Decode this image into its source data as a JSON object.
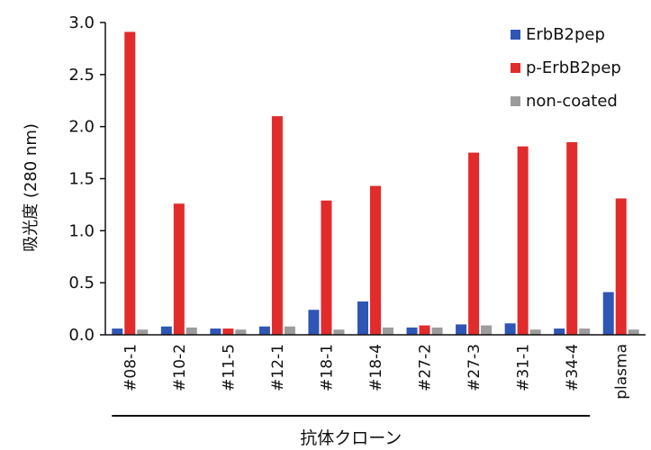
{
  "chart_data": {
    "type": "bar",
    "title": "",
    "xlabel": "",
    "ylabel": "吸光度 (280 nm)",
    "group_label": "抗体クローン",
    "ylim": [
      0,
      3.0
    ],
    "yticks": [
      "0.0",
      "0.5",
      "1.0",
      "1.5",
      "2.0",
      "2.5",
      "3.0"
    ],
    "grid": false,
    "legend_position": "top-right",
    "categories": [
      "#08-1",
      "#10-2",
      "#11-5",
      "#12-1",
      "#18-1",
      "#18-4",
      "#27-2",
      "#27-3",
      "#31-1",
      "#34-4",
      "plasma"
    ],
    "series": [
      {
        "name": "ErbB2pep",
        "color": "#2f55b5",
        "values": [
          0.06,
          0.08,
          0.06,
          0.08,
          0.24,
          0.32,
          0.07,
          0.1,
          0.11,
          0.06,
          0.41
        ]
      },
      {
        "name": "p-ErbB2pep",
        "color": "#e22b2b",
        "values": [
          2.91,
          1.26,
          0.06,
          2.1,
          1.29,
          1.43,
          0.09,
          1.75,
          1.81,
          1.85,
          1.31
        ]
      },
      {
        "name": "non-coated",
        "color": "#9c9c9c",
        "values": [
          0.05,
          0.07,
          0.05,
          0.08,
          0.05,
          0.07,
          0.07,
          0.09,
          0.05,
          0.06,
          0.05
        ]
      }
    ]
  }
}
